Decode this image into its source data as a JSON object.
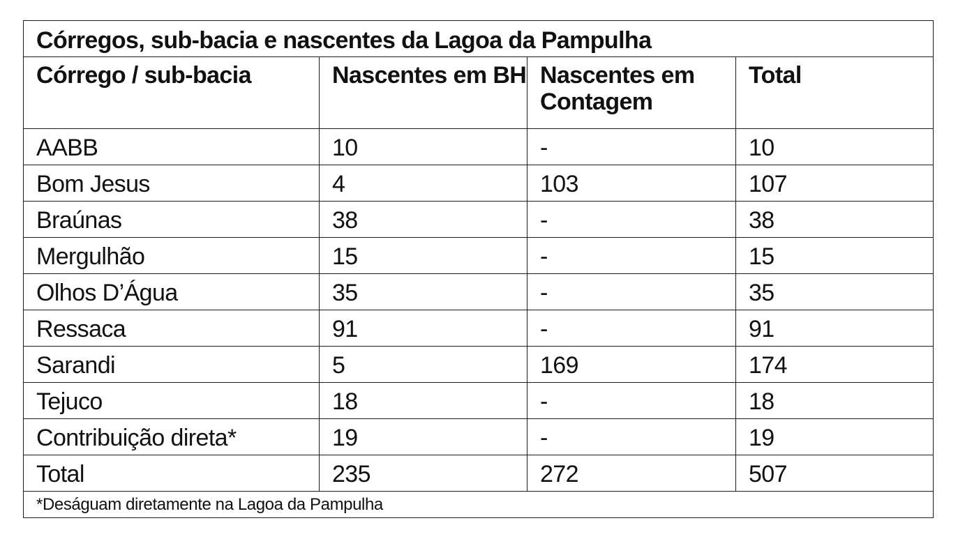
{
  "table": {
    "title": "Córregos, sub-bacia e nascentes da Lagoa da Pampulha",
    "headers": [
      "Córrego / sub-bacia",
      "Nascentes em BH",
      "Nascentes em Contagem",
      "Total"
    ],
    "rows": [
      [
        "AABB",
        "10",
        "-",
        "10"
      ],
      [
        "Bom Jesus",
        "4",
        "103",
        "107"
      ],
      [
        "Braúnas",
        "38",
        "-",
        "38"
      ],
      [
        "Mergulhão",
        "15",
        "-",
        "15"
      ],
      [
        "Olhos D’Água",
        "35",
        "-",
        "35"
      ],
      [
        "Ressaca",
        "91",
        "-",
        "91"
      ],
      [
        "Sarandi",
        "5",
        "169",
        "174"
      ],
      [
        "Tejuco",
        "18",
        "-",
        "18"
      ],
      [
        "Contribuição direta*",
        "19",
        "-",
        "19"
      ],
      [
        "Total",
        "235",
        "272",
        "507"
      ]
    ],
    "footnote": "*Deságuam diretamente na Lagoa da Pampulha"
  }
}
